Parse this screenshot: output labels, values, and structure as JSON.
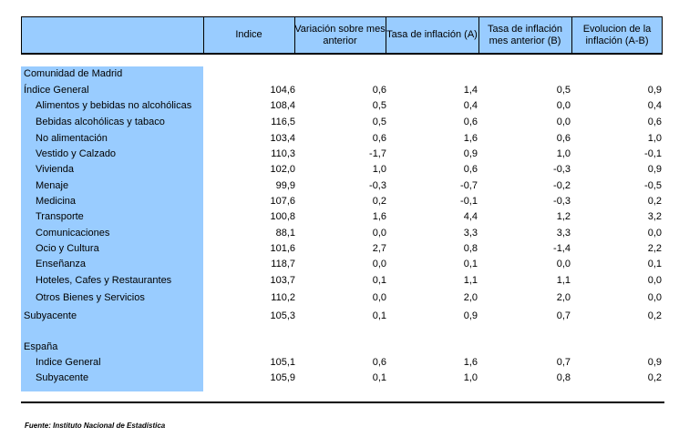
{
  "header": {
    "col1": "Indice",
    "col2": "Variación sobre mes anterior",
    "col3": "Tasa de inflación (A)",
    "col4": "Tasa de inflación mes anterior (B)",
    "col5": "Evolucion de la inflación (A-B)"
  },
  "madrid": {
    "title": "Comunidad de Madrid",
    "rows": [
      {
        "label": "Índice General",
        "v": [
          "104,6",
          "0,6",
          "1,4",
          "0,5",
          "0,9"
        ]
      },
      {
        "label": "Alimentos y bebidas no alcohólicas",
        "v": [
          "108,4",
          "0,5",
          "0,4",
          "0,0",
          "0,4"
        ]
      },
      {
        "label": "Bebidas alcohólicas y tabaco",
        "v": [
          "116,5",
          "0,5",
          "0,6",
          "0,0",
          "0,6"
        ]
      },
      {
        "label": "No alimentación",
        "v": [
          "103,4",
          "0,6",
          "1,6",
          "0,6",
          "1,0"
        ]
      },
      {
        "label": "Vestido y Calzado",
        "v": [
          "110,3",
          "-1,7",
          "0,9",
          "1,0",
          "-0,1"
        ]
      },
      {
        "label": "Vivienda",
        "v": [
          "102,0",
          "1,0",
          "0,6",
          "-0,3",
          "0,9"
        ]
      },
      {
        "label": "Menaje",
        "v": [
          "99,9",
          "-0,3",
          "-0,7",
          "-0,2",
          "-0,5"
        ]
      },
      {
        "label": "Medicina",
        "v": [
          "107,6",
          "0,2",
          "-0,1",
          "-0,3",
          "0,2"
        ]
      },
      {
        "label": "Transporte",
        "v": [
          "100,8",
          "1,6",
          "4,4",
          "1,2",
          "3,2"
        ]
      },
      {
        "label": "Comunicaciones",
        "v": [
          "88,1",
          "0,0",
          "3,3",
          "3,3",
          "0,0"
        ]
      },
      {
        "label": "Ocio y Cultura",
        "v": [
          "101,6",
          "2,7",
          "0,8",
          "-1,4",
          "2,2"
        ]
      },
      {
        "label": "Enseñanza",
        "v": [
          "118,7",
          "0,0",
          "0,1",
          "0,0",
          "0,1"
        ]
      },
      {
        "label": "Hoteles, Cafes y Restaurantes",
        "v": [
          "103,7",
          "0,1",
          "1,1",
          "1,1",
          "0,0"
        ]
      },
      {
        "label": "Otros Bienes y Servicios",
        "v": [
          "110,2",
          "0,0",
          "2,0",
          "2,0",
          "0,0"
        ]
      },
      {
        "label": "Subyacente",
        "v": [
          "105,3",
          "0,1",
          "0,9",
          "0,7",
          "0,2"
        ]
      }
    ]
  },
  "spain": {
    "title": "España",
    "rows": [
      {
        "label": "Indice General",
        "v": [
          "105,1",
          "0,6",
          "1,6",
          "0,7",
          "0,9"
        ]
      },
      {
        "label": "Subyacente",
        "v": [
          "105,9",
          "0,1",
          "1,0",
          "0,8",
          "0,2"
        ]
      }
    ]
  },
  "source": "Fuente: Instituto Nacional de Estadística"
}
